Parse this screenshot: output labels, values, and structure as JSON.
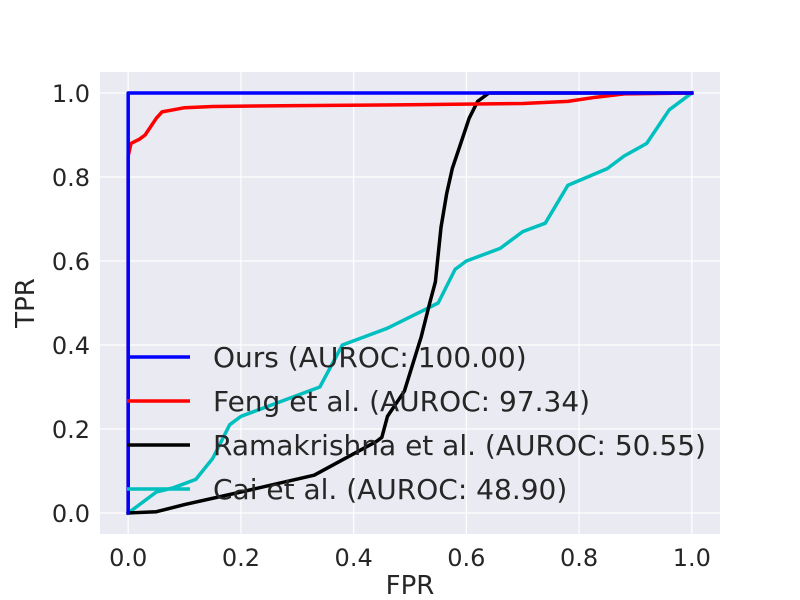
{
  "chart_data": {
    "type": "line",
    "title": "",
    "xlabel": "FPR",
    "ylabel": "TPR",
    "xlim": [
      -0.05,
      1.05
    ],
    "ylim": [
      -0.05,
      1.05
    ],
    "xticks": [
      0.0,
      0.2,
      0.4,
      0.6,
      0.8,
      1.0
    ],
    "yticks": [
      0.0,
      0.2,
      0.4,
      0.6,
      0.8,
      1.0
    ],
    "xtick_labels": [
      "0.0",
      "0.2",
      "0.4",
      "0.6",
      "0.8",
      "1.0"
    ],
    "ytick_labels": [
      "0.0",
      "0.2",
      "0.4",
      "0.6",
      "0.8",
      "1.0"
    ],
    "grid": true,
    "legend_position": "lower-left",
    "series": [
      {
        "name": "Ours (AUROC: 100.00)",
        "color": "#0000ff",
        "points": [
          [
            0.0,
            0.0
          ],
          [
            0.0,
            1.0
          ],
          [
            1.0,
            1.0
          ]
        ]
      },
      {
        "name": "Feng et al. (AUROC: 97.34)",
        "color": "#ff0000",
        "points": [
          [
            0.0,
            0.0
          ],
          [
            0.0,
            0.85
          ],
          [
            0.005,
            0.88
          ],
          [
            0.02,
            0.89
          ],
          [
            0.03,
            0.9
          ],
          [
            0.04,
            0.92
          ],
          [
            0.05,
            0.94
          ],
          [
            0.06,
            0.955
          ],
          [
            0.08,
            0.96
          ],
          [
            0.1,
            0.965
          ],
          [
            0.15,
            0.968
          ],
          [
            0.3,
            0.97
          ],
          [
            0.5,
            0.972
          ],
          [
            0.7,
            0.975
          ],
          [
            0.78,
            0.98
          ],
          [
            0.83,
            0.99
          ],
          [
            0.88,
            0.998
          ],
          [
            1.0,
            1.0
          ]
        ]
      },
      {
        "name": "Ramakrishna et al. (AUROC: 50.55)",
        "color": "#000000",
        "points": [
          [
            0.0,
            0.0
          ],
          [
            0.05,
            0.003
          ],
          [
            0.1,
            0.02
          ],
          [
            0.2,
            0.05
          ],
          [
            0.33,
            0.09
          ],
          [
            0.44,
            0.17
          ],
          [
            0.45,
            0.18
          ],
          [
            0.46,
            0.23
          ],
          [
            0.49,
            0.29
          ],
          [
            0.52,
            0.42
          ],
          [
            0.535,
            0.5
          ],
          [
            0.545,
            0.55
          ],
          [
            0.555,
            0.68
          ],
          [
            0.565,
            0.76
          ],
          [
            0.575,
            0.82
          ],
          [
            0.59,
            0.88
          ],
          [
            0.605,
            0.94
          ],
          [
            0.62,
            0.98
          ],
          [
            0.64,
            1.0
          ],
          [
            1.0,
            1.0
          ]
        ]
      },
      {
        "name": "Cai et al. (AUROC: 48.90)",
        "color": "#00bfbf",
        "points": [
          [
            0.0,
            0.0
          ],
          [
            0.02,
            0.02
          ],
          [
            0.05,
            0.05
          ],
          [
            0.08,
            0.06
          ],
          [
            0.12,
            0.08
          ],
          [
            0.15,
            0.13
          ],
          [
            0.18,
            0.21
          ],
          [
            0.2,
            0.23
          ],
          [
            0.22,
            0.24
          ],
          [
            0.3,
            0.28
          ],
          [
            0.34,
            0.3
          ],
          [
            0.38,
            0.4
          ],
          [
            0.42,
            0.42
          ],
          [
            0.46,
            0.44
          ],
          [
            0.52,
            0.48
          ],
          [
            0.55,
            0.5
          ],
          [
            0.58,
            0.58
          ],
          [
            0.6,
            0.6
          ],
          [
            0.66,
            0.63
          ],
          [
            0.7,
            0.67
          ],
          [
            0.74,
            0.69
          ],
          [
            0.78,
            0.78
          ],
          [
            0.85,
            0.82
          ],
          [
            0.88,
            0.85
          ],
          [
            0.92,
            0.88
          ],
          [
            0.96,
            0.96
          ],
          [
            1.0,
            1.0
          ]
        ]
      }
    ]
  }
}
